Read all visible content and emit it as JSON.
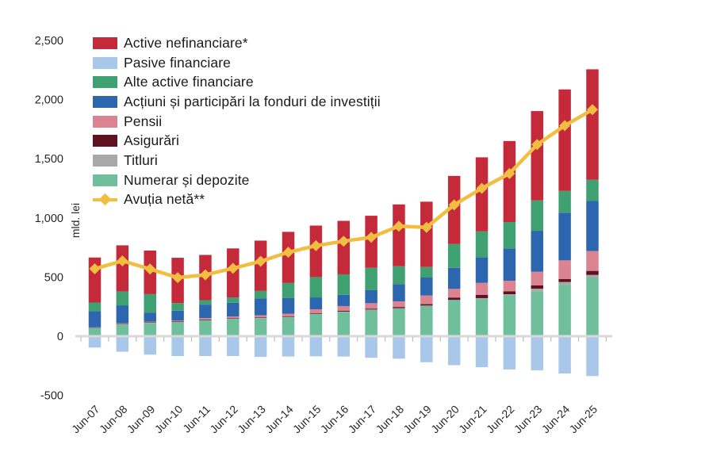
{
  "chart": {
    "ylabel": "mld. lei",
    "y_tick_labels": [
      "2,500",
      "2,000",
      "1,500",
      "1,000",
      "500",
      "0",
      "-500"
    ]
  },
  "chart_data": {
    "type": "bar",
    "subtype": "stacked-bars-with-line-overlay",
    "title": "",
    "xlabel": "",
    "ylabel": "mld. lei",
    "ylim": [
      -500,
      2500
    ],
    "y_tick_step": 500,
    "grid": false,
    "legend_position": "top-left",
    "categories": [
      "Jun-07",
      "Jun-08",
      "Jun-09",
      "Jun-10",
      "Jun-11",
      "Jun-12",
      "Jun-13",
      "Jun-14",
      "Jun-15",
      "Jun-16",
      "Jun-17",
      "Jun-18",
      "Jun-19",
      "Jun-20",
      "Jun-21",
      "Jun-22",
      "Jun-23",
      "Jun-24",
      "Jun-25"
    ],
    "y_ticks": [
      {
        "v": 2500,
        "label": "2,500"
      },
      {
        "v": 2000,
        "label": "2,000"
      },
      {
        "v": 1500,
        "label": "1,500"
      },
      {
        "v": 1000,
        "label": "1,000"
      },
      {
        "v": 500,
        "label": "500"
      },
      {
        "v": 0,
        "label": "0"
      },
      {
        "v": -500,
        "label": "-500"
      }
    ],
    "stack_order": [
      "numerar",
      "titluri",
      "asigurari",
      "pensii",
      "actiuni",
      "alte",
      "nefinanciare"
    ],
    "legend_order": [
      "nefinanciare",
      "pasive",
      "alte",
      "actiuni",
      "pensii",
      "asigurari",
      "titluri",
      "numerar",
      "net"
    ],
    "series": [
      {
        "key": "numerar",
        "label": "Numerar și depozite",
        "color": "#6FBE9C",
        "values": [
          68,
          100,
          112,
          118,
          134,
          145,
          152,
          160,
          188,
          206,
          223,
          235,
          257,
          305,
          312,
          345,
          380,
          435,
          496
        ]
      },
      {
        "key": "titluri",
        "label": "Titluri",
        "color": "#A8A8A8",
        "values": [
          2,
          2,
          2,
          2,
          2,
          2,
          2,
          2,
          2,
          2,
          2,
          2,
          2,
          2,
          10,
          10,
          22,
          23,
          22
        ]
      },
      {
        "key": "asigurari",
        "label": "Asigurări",
        "color": "#5E1220",
        "values": [
          3,
          4,
          4,
          4,
          5,
          5,
          5,
          5,
          6,
          7,
          8,
          10,
          12,
          20,
          28,
          25,
          27,
          26,
          34
        ]
      },
      {
        "key": "pensii",
        "label": "Pensii",
        "color": "#DB8391",
        "values": [
          2,
          4,
          6,
          8,
          12,
          15,
          18,
          23,
          32,
          40,
          46,
          48,
          73,
          73,
          101,
          89,
          116,
          157,
          168
        ]
      },
      {
        "key": "actiuni",
        "label": "Acțiuni și participări la fonduri de investiții",
        "color": "#2B66AE",
        "values": [
          137,
          151,
          76,
          84,
          114,
          116,
          142,
          132,
          100,
          95,
          110,
          145,
          152,
          178,
          217,
          273,
          346,
          402,
          423
        ]
      },
      {
        "key": "alte",
        "label": "Alte active financiare",
        "color": "#3FA172",
        "values": [
          73,
          118,
          156,
          64,
          38,
          45,
          64,
          128,
          172,
          173,
          189,
          152,
          89,
          201,
          218,
          223,
          257,
          185,
          179
        ]
      },
      {
        "key": "nefinanciare",
        "label": "Active nefinanciare*",
        "color": "#C52A3B",
        "values": [
          380,
          389,
          368,
          383,
          382,
          414,
          425,
          432,
          435,
          452,
          440,
          522,
          552,
          576,
          626,
          685,
          755,
          858,
          934
        ]
      },
      {
        "key": "pasive",
        "label": "Pasive financiare",
        "color": "#A9C7E8",
        "values": [
          -96,
          -131,
          -156,
          -168,
          -168,
          -168,
          -175,
          -172,
          -170,
          -172,
          -182,
          -190,
          -220,
          -245,
          -262,
          -281,
          -288,
          -315,
          -337
        ]
      }
    ],
    "line_series": {
      "key": "net",
      "label": "Avuția netă**",
      "color": "#F2BE41",
      "values": [
        570,
        637,
        568,
        495,
        519,
        574,
        633,
        710,
        765,
        803,
        836,
        930,
        920,
        1110,
        1250,
        1375,
        1620,
        1780,
        1915
      ]
    }
  }
}
